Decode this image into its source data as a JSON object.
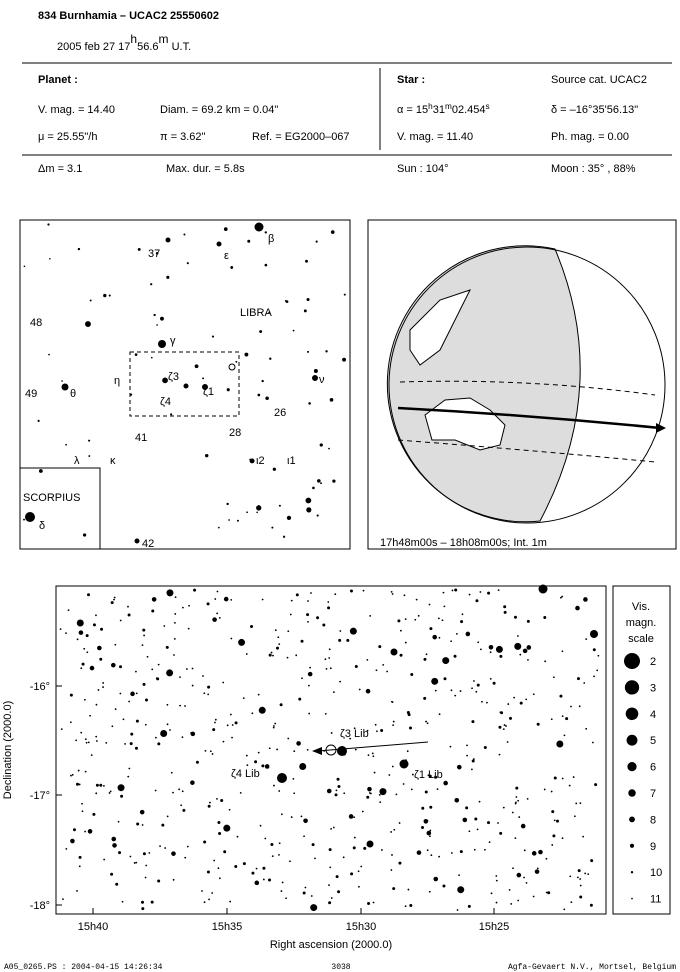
{
  "header": {
    "title": "834 Burnhamia  –  UCAC2 25550602",
    "subtitle": [
      "2005 feb 27  17",
      "h",
      "56.6",
      "m",
      " U.T."
    ]
  },
  "planet": {
    "heading": "Planet :",
    "vmag": "V. mag. = 14.40",
    "diam": "Diam. = 69.2 km = 0.04\"",
    "mu": "μ =  25.55\"/h",
    "pi": "π =  3.62\"",
    "ref": "Ref. = EG2000–067"
  },
  "star": {
    "heading": "Star :",
    "source": "Source cat.  UCAC2",
    "ra": [
      "α = 15",
      "h",
      "31",
      "m",
      "02.454",
      "s"
    ],
    "dec": "δ = –16°35'56.13\"",
    "vmag": "V. mag. = 11.40",
    "phmag": "Ph. mag. =  0.00"
  },
  "summary": {
    "dm": "Δm = 3.1",
    "maxdur": "Max. dur. = 5.8s",
    "sun": "Sun : 104°",
    "moon": "Moon :  35° , 88%"
  },
  "finder": {
    "labels": [
      "β",
      "37",
      "ε",
      "LIBRA",
      "48",
      "γ",
      "η",
      "ζ3",
      "ζ4",
      "ζ1",
      "ν",
      "49",
      "θ",
      "26",
      "28",
      "41",
      "λ",
      "κ",
      "ι2",
      "ι1",
      "SCORPIUS",
      "δ",
      "42"
    ]
  },
  "globe": {
    "caption": "17h48m00s – 18h08m00s; Int.  1m"
  },
  "main": {
    "xlabel": "Right ascension (2000.0)",
    "ylabel": "Declination (2000.0)",
    "xticks": [
      "15h40",
      "15h35",
      "15h30",
      "15h25"
    ],
    "yticks": [
      "-16°",
      "-17°",
      "-18°"
    ],
    "star_labels": [
      "ζ3 Lib",
      "ζ4 Lib",
      "ζ1 Lib"
    ]
  },
  "magscale": {
    "title": [
      "Vis.",
      "magn.",
      "scale"
    ],
    "mags": [
      "2",
      "3",
      "4",
      "5",
      "6",
      "7",
      "8",
      "9",
      "10",
      "11"
    ]
  },
  "footer": {
    "file": "A05_0265.PS : 2004-04-15 14:26:34",
    "number": "3038",
    "company": "Agfa-Gevaert N.V., Mortsel, Belgium"
  }
}
